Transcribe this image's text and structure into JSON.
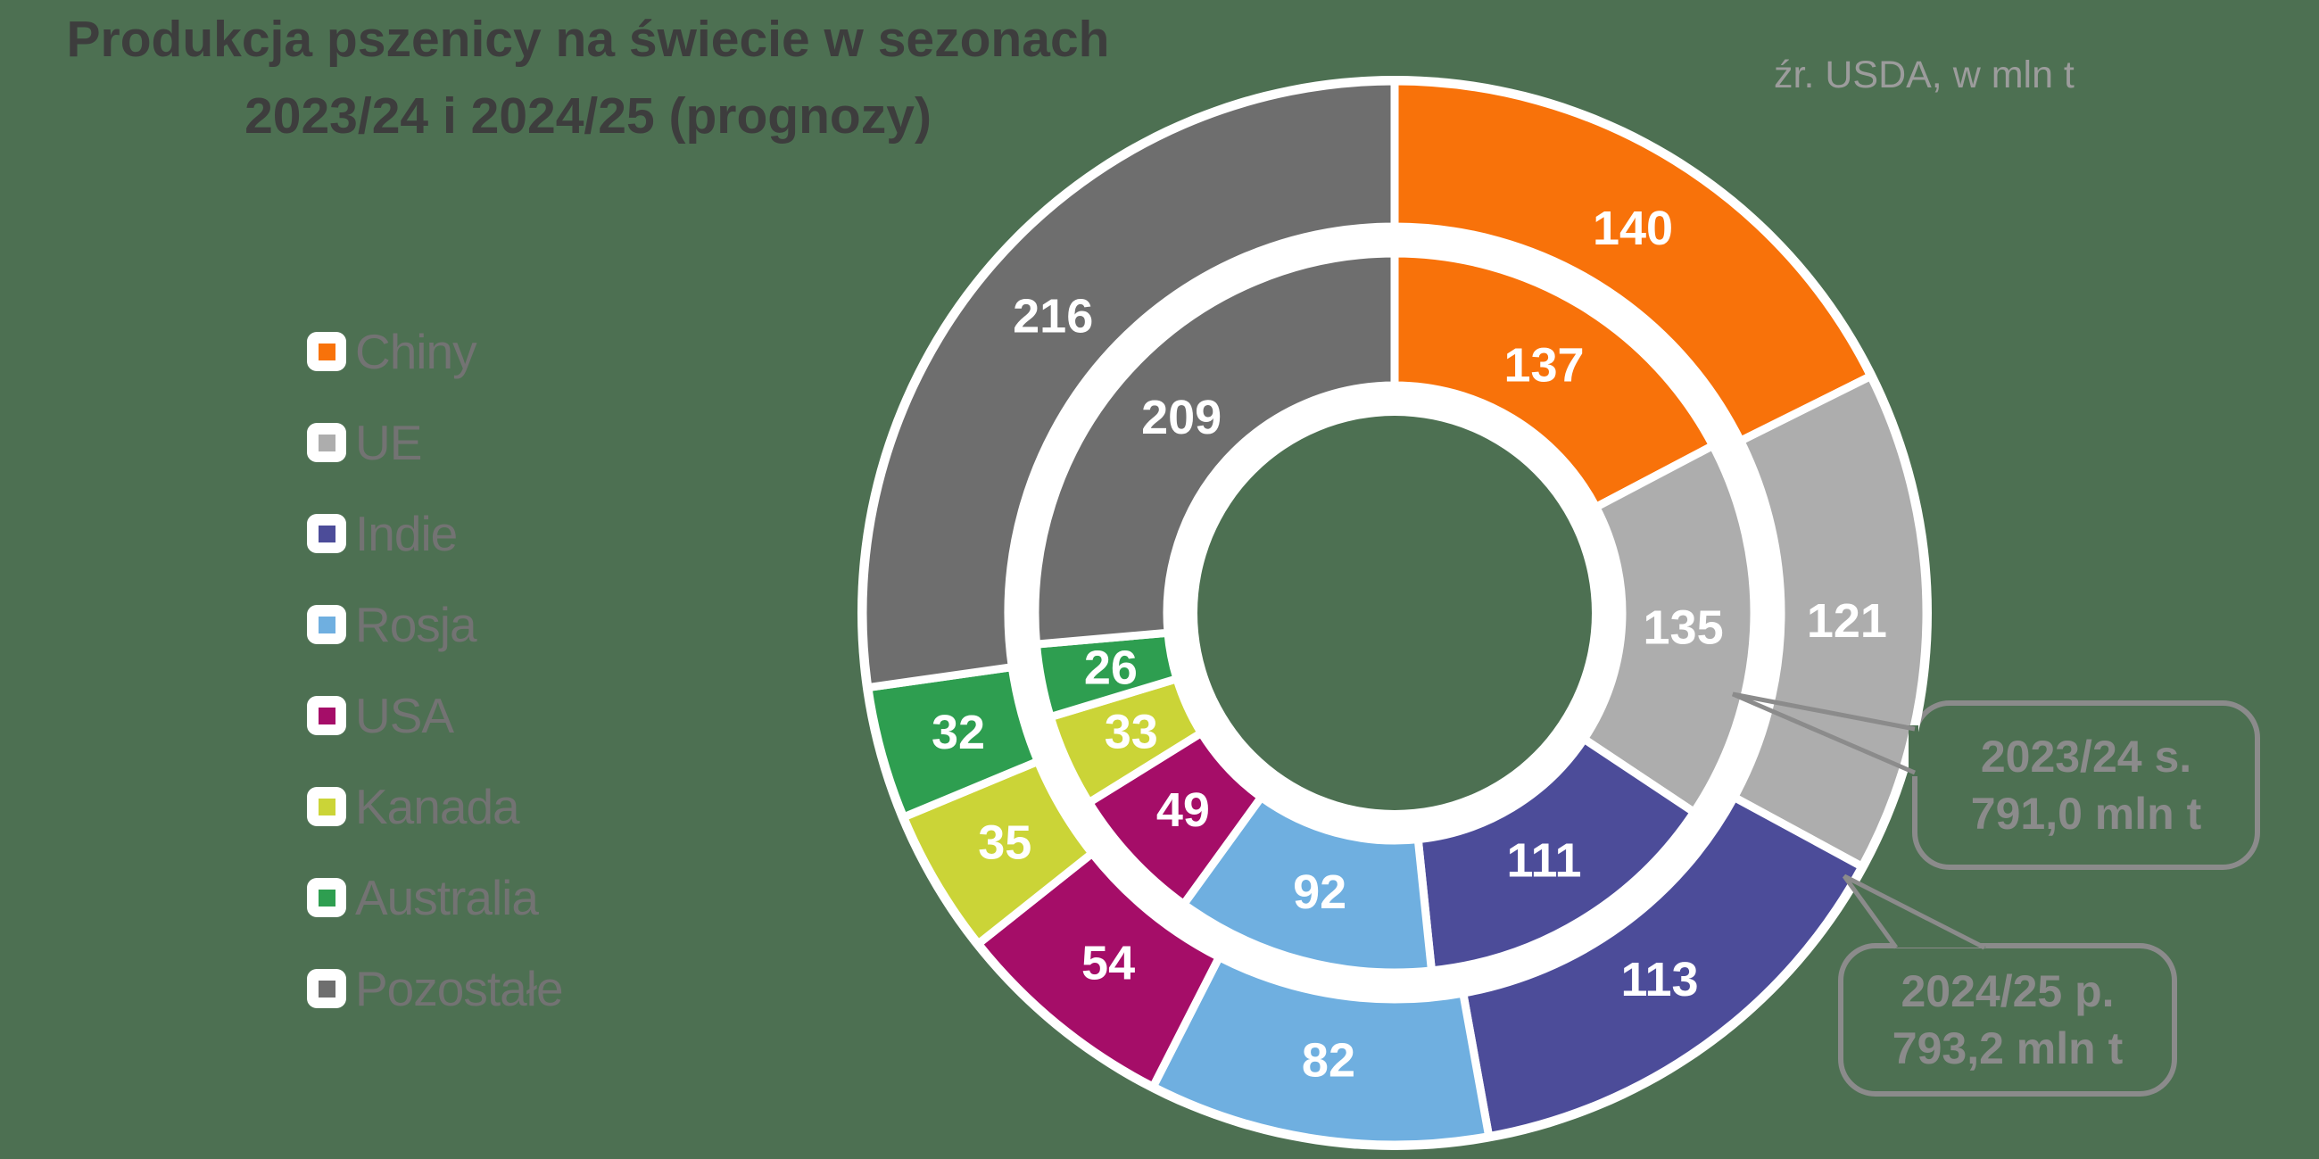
{
  "title": "Produkcja pszenicy na świecie w sezonach 2023/24 i 2024/25 (prognozy)",
  "source_note": "źr. USDA, w mln t",
  "colors": {
    "background": "#4D7052",
    "title_text": "#3D3D3D",
    "legend_text": "#737373",
    "source_text": "#9C9C9C",
    "callout": "#8B8B8B",
    "separator": "#FFFFFF",
    "value_label": "#FFFFFF"
  },
  "chart_data": {
    "type": "donut",
    "subtype": "nested-two-ring",
    "unit": "mln t",
    "start_angle": "top",
    "direction": "clockwise",
    "legend_position": "left",
    "categories": [
      {
        "name": "Chiny",
        "color": "#F8720A"
      },
      {
        "name": "UE",
        "color": "#ADADAD"
      },
      {
        "name": "Indie",
        "color": "#4C4C99"
      },
      {
        "name": "Rosja",
        "color": "#6FAFE0"
      },
      {
        "name": "USA",
        "color": "#A50D68"
      },
      {
        "name": "Kanada",
        "color": "#CBD437"
      },
      {
        "name": "Australia",
        "color": "#2E9E50"
      },
      {
        "name": "Pozostałe",
        "color": "#6E6E6E"
      }
    ],
    "series": [
      {
        "name": "2024/25 p.",
        "ring": "outer",
        "total": 793.2,
        "total_label": "793,2 mln t",
        "values": [
          140,
          121,
          113,
          82,
          54,
          35,
          32,
          216
        ]
      },
      {
        "name": "2023/24 s.",
        "ring": "inner",
        "total": 791.0,
        "total_label": "791,0 mln t",
        "values": [
          137,
          135,
          111,
          92,
          49,
          33,
          26,
          209
        ]
      }
    ]
  },
  "callouts": [
    {
      "line1": "2023/24 s.",
      "line2": "791,0 mln t",
      "points_to": "inner ring (UE segment)"
    },
    {
      "line1": "2024/25 p.",
      "line2": "793,2 mln t",
      "points_to": "outer ring edge (UE/Indie boundary)"
    }
  ]
}
